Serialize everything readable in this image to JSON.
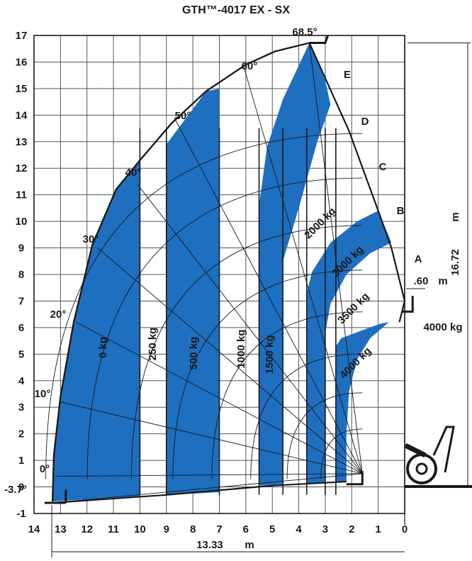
{
  "title": "GTH™-4017 EX - SX",
  "colors": {
    "zone": "#1f6fc0",
    "line": "#1a1a1a",
    "grid": "#555555"
  },
  "chart_data": {
    "type": "load_chart",
    "xlim": [
      14,
      0
    ],
    "ylim": [
      -1,
      17
    ],
    "x_ticks": [
      "14",
      "13",
      "12",
      "11",
      "10",
      "9",
      "8",
      "7",
      "6",
      "5",
      "4",
      "3",
      "2",
      "1",
      "0"
    ],
    "y_ticks": [
      "17",
      "16",
      "15",
      "14",
      "13",
      "12",
      "11",
      "10",
      "9",
      "8",
      "7",
      "6",
      "5",
      "4",
      "3",
      "2",
      "1",
      "0",
      "-1"
    ],
    "angles": [
      "68.5°",
      "60°",
      "50°",
      "40°",
      "30°",
      "20°",
      "10°",
      "0°",
      "-3.7°"
    ],
    "extensions": [
      "A",
      "B",
      "C",
      "D",
      "E"
    ],
    "zones": [
      "0 kg",
      "250 kg",
      "500 kg",
      "1000 kg",
      "1500 kg",
      "2000 kg",
      "3000 kg",
      "3500 kg",
      "4000 kg"
    ],
    "side_label": "4000 kg",
    "dimensions": {
      "height_value": "16.72",
      "height_unit": "m",
      "reach_value": "13.33",
      "reach_unit": "m",
      "offset_value": ".60",
      "offset_unit": "m"
    }
  }
}
